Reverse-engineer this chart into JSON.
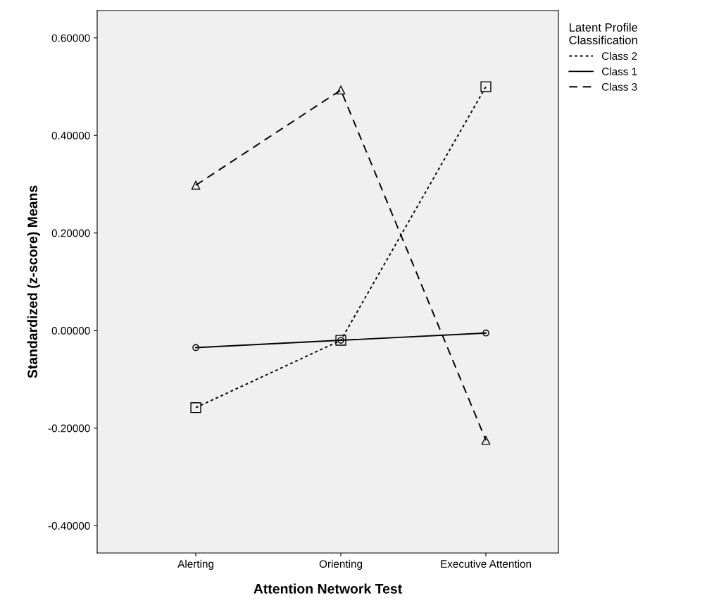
{
  "chart_data": {
    "type": "line",
    "xlabel": "Attention Network Test",
    "ylabel": "Standardized (z-score) Means",
    "legend_title": "Latent Profile\nClassification",
    "categories": [
      "Alerting",
      "Orienting",
      "Executive Attention"
    ],
    "series": [
      {
        "name": "Class 2",
        "color": "#000000",
        "values": [
          -0.158,
          -0.02,
          0.5
        ],
        "marker": "square",
        "line_style": "dotted"
      },
      {
        "name": "Class 1",
        "color": "#000000",
        "values": [
          -0.035,
          -0.02,
          -0.005
        ],
        "marker": "circle",
        "line_style": "solid"
      },
      {
        "name": "Class 3",
        "color": "#000000",
        "values": [
          0.298,
          0.493,
          -0.225
        ],
        "marker": "triangle",
        "line_style": "dashed"
      }
    ],
    "ylim": [
      -0.456,
      0.656
    ],
    "yticks": [
      {
        "value": -0.4,
        "label": "-0.40000"
      },
      {
        "value": -0.2,
        "label": "-0.20000"
      },
      {
        "value": 0,
        "label": "0.00000"
      },
      {
        "value": 0.2,
        "label": "0.20000"
      },
      {
        "value": 0.4,
        "label": "0.40000"
      },
      {
        "value": 0.6,
        "label": "0.60000"
      }
    ],
    "grid": false,
    "legend": "top right"
  }
}
